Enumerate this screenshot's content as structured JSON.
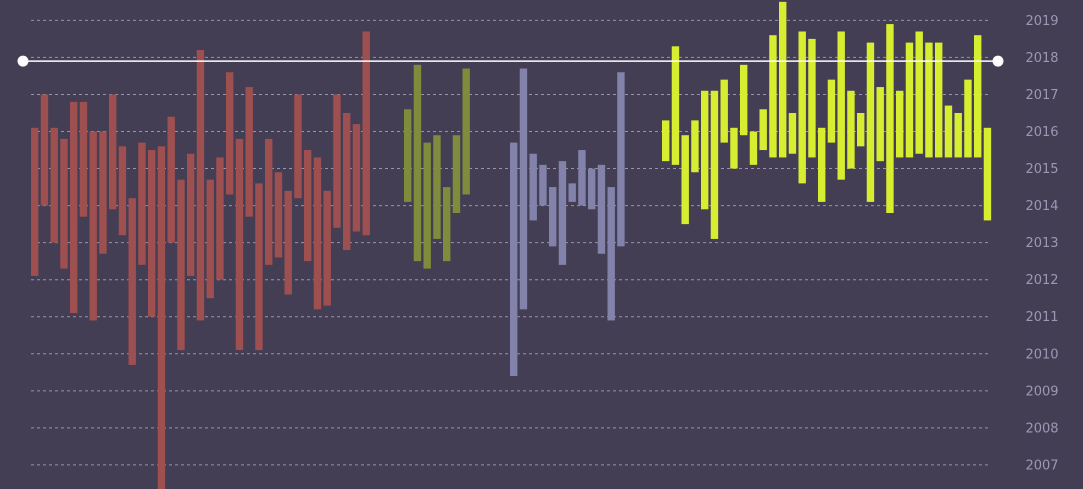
{
  "chart_data": {
    "type": "bar",
    "subtype": "floating-range",
    "title": "",
    "xlabel": "",
    "ylabel": "",
    "ylim": [
      2006.35,
      2019.55
    ],
    "yticks": [
      "2019",
      "2018",
      "2017",
      "2016",
      "2015",
      "2014",
      "2013",
      "2012",
      "2011",
      "2010",
      "2009",
      "2008",
      "2007"
    ],
    "y_axis_position": "right",
    "grid": true,
    "legend": "none",
    "background_color": "#433e54",
    "grid_color": "#a6a2bb",
    "reference_line": {
      "value": 2017.9,
      "color": "#ffffff"
    },
    "series": [
      {
        "color": "#9e4f4f",
        "ranges": [
          [
            2012.1,
            2016.1
          ],
          [
            2014.0,
            2017.0
          ],
          [
            2013.0,
            2016.1
          ],
          [
            2012.3,
            2015.8
          ],
          [
            2011.1,
            2016.8
          ],
          [
            2013.7,
            2016.8
          ],
          [
            2010.9,
            2016.0
          ],
          [
            2012.7,
            2016.0
          ],
          [
            2013.9,
            2017.0
          ],
          [
            2013.2,
            2015.6
          ],
          [
            2009.7,
            2014.2
          ],
          [
            2012.4,
            2015.7
          ],
          [
            2011.0,
            2015.5
          ],
          [
            2006.1,
            2015.6
          ],
          [
            2013.0,
            2016.4
          ],
          [
            2010.1,
            2014.7
          ],
          [
            2012.1,
            2015.4
          ],
          [
            2010.9,
            2018.2
          ],
          [
            2011.5,
            2014.7
          ],
          [
            2012.0,
            2015.3
          ],
          [
            2014.3,
            2017.6
          ],
          [
            2010.1,
            2015.8
          ],
          [
            2013.7,
            2017.2
          ],
          [
            2010.1,
            2014.6
          ],
          [
            2012.4,
            2015.8
          ],
          [
            2012.6,
            2014.9
          ],
          [
            2011.6,
            2014.4
          ],
          [
            2014.2,
            2017.0
          ],
          [
            2012.5,
            2015.5
          ],
          [
            2011.2,
            2015.3
          ],
          [
            2011.3,
            2014.4
          ],
          [
            2013.4,
            2017.0
          ],
          [
            2012.8,
            2016.5
          ],
          [
            2013.3,
            2016.2
          ],
          [
            2013.2,
            2018.7
          ]
        ]
      },
      {
        "color": "#7e8c3b",
        "ranges": [
          [
            2014.1,
            2016.6
          ],
          [
            2012.5,
            2017.8
          ],
          [
            2012.3,
            2015.7
          ],
          [
            2013.1,
            2015.9
          ],
          [
            2012.5,
            2014.5
          ],
          [
            2013.8,
            2015.9
          ],
          [
            2014.3,
            2017.7
          ]
        ]
      },
      {
        "color": "#8382aa",
        "ranges": [
          [
            2009.4,
            2015.7
          ],
          [
            2011.2,
            2017.7
          ],
          [
            2013.6,
            2015.4
          ],
          [
            2014.0,
            2015.1
          ],
          [
            2012.9,
            2014.5
          ],
          [
            2012.4,
            2015.2
          ],
          [
            2014.1,
            2014.6
          ],
          [
            2014.0,
            2015.5
          ],
          [
            2013.9,
            2015.0
          ],
          [
            2012.7,
            2015.1
          ],
          [
            2010.9,
            2014.5
          ],
          [
            2012.9,
            2017.6
          ]
        ]
      },
      {
        "color": "#d7ed30",
        "ranges": [
          [
            2015.2,
            2016.3
          ],
          [
            2015.1,
            2018.3
          ],
          [
            2013.5,
            2015.9
          ],
          [
            2014.9,
            2016.3
          ],
          [
            2013.9,
            2017.1
          ],
          [
            2013.1,
            2017.1
          ],
          [
            2015.7,
            2017.4
          ],
          [
            2015.0,
            2016.1
          ],
          [
            2015.9,
            2017.8
          ],
          [
            2015.1,
            2016.0
          ],
          [
            2015.5,
            2016.6
          ],
          [
            2015.3,
            2018.6
          ],
          [
            2015.3,
            2019.5
          ],
          [
            2015.4,
            2016.5
          ],
          [
            2014.6,
            2018.7
          ],
          [
            2015.3,
            2018.5
          ],
          [
            2014.1,
            2016.1
          ],
          [
            2015.7,
            2017.4
          ],
          [
            2014.7,
            2018.7
          ],
          [
            2015.0,
            2017.1
          ],
          [
            2015.6,
            2016.5
          ],
          [
            2014.1,
            2018.4
          ],
          [
            2015.2,
            2017.2
          ],
          [
            2013.8,
            2018.9
          ],
          [
            2015.3,
            2017.1
          ],
          [
            2015.3,
            2018.4
          ],
          [
            2015.4,
            2018.7
          ],
          [
            2015.3,
            2018.4
          ],
          [
            2015.3,
            2018.4
          ],
          [
            2015.3,
            2016.7
          ],
          [
            2015.3,
            2016.5
          ],
          [
            2015.3,
            2017.4
          ],
          [
            2015.3,
            2018.6
          ],
          [
            2013.6,
            2016.1
          ]
        ]
      }
    ]
  }
}
